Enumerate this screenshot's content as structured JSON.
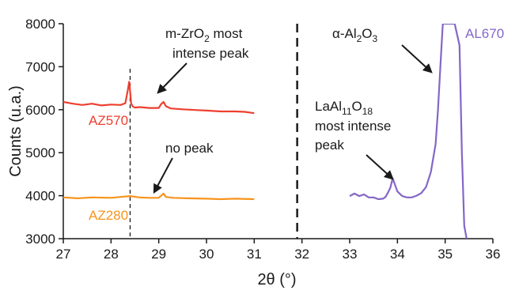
{
  "chart_data": {
    "type": "line",
    "xlabel": "2θ (°)",
    "ylabel": "Counts (u.a.)",
    "xlim": [
      27,
      36
    ],
    "ylim": [
      3000,
      8000
    ],
    "xticks": [
      "27",
      "28",
      "29",
      "30",
      "31",
      "32",
      "33",
      "34",
      "35",
      "36"
    ],
    "yticks": [
      "3000",
      "4000",
      "5000",
      "6000",
      "7000",
      "8000"
    ],
    "grid": false,
    "legend": "none",
    "series": [
      {
        "name": "AZ570",
        "color": "#ee3f2f",
        "x": [
          27.0,
          27.2,
          27.4,
          27.6,
          27.8,
          28.0,
          28.2,
          28.3,
          28.35,
          28.38,
          28.4,
          28.42,
          28.45,
          28.5,
          28.6,
          28.8,
          29.0,
          29.05,
          29.1,
          29.15,
          29.25,
          29.5,
          29.8,
          30.0,
          30.3,
          30.6,
          30.8,
          31.0
        ],
        "values": [
          6180,
          6140,
          6110,
          6140,
          6100,
          6120,
          6110,
          6150,
          6450,
          6650,
          6420,
          6150,
          6080,
          6050,
          6060,
          6040,
          6040,
          6130,
          6180,
          6080,
          6030,
          6010,
          5990,
          5980,
          5960,
          5960,
          5950,
          5920
        ]
      },
      {
        "name": "AZ280",
        "color": "#f7941d",
        "x": [
          27.0,
          27.3,
          27.6,
          28.0,
          28.2,
          28.4,
          28.6,
          28.8,
          29.0,
          29.05,
          29.1,
          29.15,
          29.3,
          29.6,
          30.0,
          30.3,
          30.6,
          31.0
        ],
        "values": [
          3960,
          3940,
          3960,
          3950,
          3970,
          3990,
          3960,
          3950,
          3950,
          4000,
          4050,
          3970,
          3950,
          3940,
          3930,
          3920,
          3930,
          3920
        ]
      },
      {
        "name": "AL670",
        "color": "#8566c7",
        "x": [
          33.0,
          33.1,
          33.2,
          33.3,
          33.4,
          33.5,
          33.6,
          33.7,
          33.75,
          33.8,
          33.85,
          33.9,
          33.95,
          34.0,
          34.1,
          34.2,
          34.3,
          34.4,
          34.5,
          34.6,
          34.7,
          34.8,
          34.85,
          34.9,
          34.95,
          35.0,
          35.1,
          35.2,
          35.3,
          35.35,
          35.4,
          35.45
        ],
        "values": [
          3990,
          4050,
          3990,
          4030,
          3960,
          3960,
          3920,
          3930,
          3970,
          4070,
          4180,
          4400,
          4250,
          4100,
          3990,
          3960,
          3960,
          4000,
          4060,
          4200,
          4550,
          5200,
          6000,
          7000,
          8000,
          8000,
          8000,
          8000,
          7500,
          5000,
          3300,
          3000
        ]
      }
    ],
    "annotations": {
      "zro2_line1_pre": "m-ZrO",
      "zro2_line1_sub": "2",
      "zro2_line1_post": " most",
      "zro2_line2": "intense peak",
      "no_peak": "no peak",
      "alpha_pre": "α-Al",
      "alpha_sub1": "2",
      "alpha_mid": "O",
      "alpha_sub2": "3",
      "lanthanum_pre": "LaAl",
      "lanthanum_sub1": "11",
      "lanthanum_mid": "O",
      "lanthanum_sub2": "18",
      "lanthanum_line2": "most intense",
      "lanthanum_line3": "peak"
    },
    "reference_lines": [
      {
        "x": 28.4,
        "style": "short-dash"
      },
      {
        "x": 31.9,
        "style": "long-dash"
      }
    ]
  }
}
